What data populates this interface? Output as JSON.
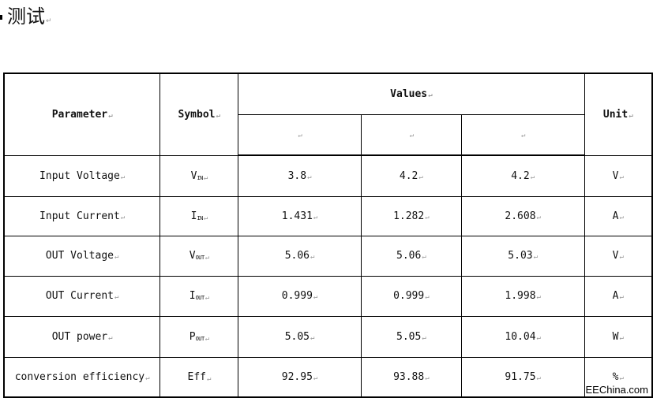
{
  "title": "测试",
  "table": {
    "headers": {
      "parameter": "Parameter",
      "symbol": "Symbol",
      "values": "Values",
      "unit": "Unit"
    },
    "rows": [
      {
        "parameter": "Input Voltage",
        "symbol": "V",
        "sub": "IN",
        "v1": "3.8",
        "v2": "4.2",
        "v3": "4.2",
        "unit": "V"
      },
      {
        "parameter": "Input Current",
        "symbol": "I",
        "sub": "IN",
        "v1": "1.431",
        "v2": "1.282",
        "v3": "2.608",
        "unit": "A"
      },
      {
        "parameter": "OUT Voltage",
        "symbol": "V",
        "sub": "OUT",
        "v1": "5.06",
        "v2": "5.06",
        "v3": "5.03",
        "unit": "V"
      },
      {
        "parameter": "OUT Current",
        "symbol": "I",
        "sub": "OUT",
        "v1": "0.999",
        "v2": "0.999",
        "v3": "1.998",
        "unit": "A"
      },
      {
        "parameter": "OUT power",
        "symbol": "P",
        "sub": "OUT",
        "v1": "5.05",
        "v2": "5.05",
        "v3": "10.04",
        "unit": "W"
      },
      {
        "parameter": "conversion efficiency",
        "symbol": "Eff",
        "sub": "",
        "v1": "92.95",
        "v2": "93.88",
        "v3": "91.75",
        "unit": "%"
      }
    ]
  },
  "watermark": "EEChina.com"
}
